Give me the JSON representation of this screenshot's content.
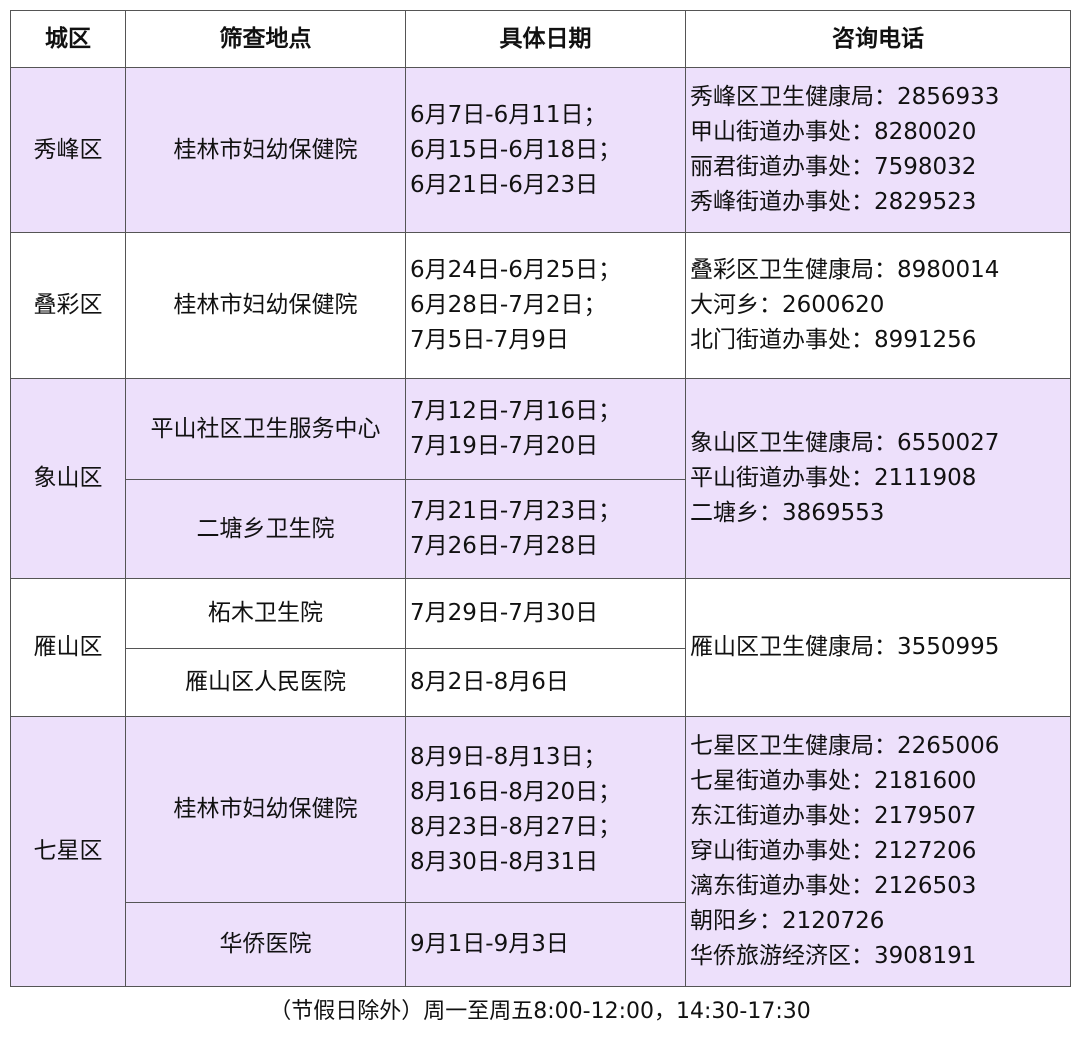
{
  "headers": [
    "城区",
    "筛查地点",
    "具体日期",
    "咨询电话"
  ],
  "colors": {
    "highlight_row": "#ede0fb",
    "border": "#555555"
  },
  "rows": [
    {
      "district": "秀峰区",
      "sites": [
        {
          "name": "桂林市妇幼保健院",
          "dates": [
            "6月7日-6月11日；",
            "6月15日-6月18日；",
            "6月21日-6月23日"
          ]
        }
      ],
      "phones": [
        "秀峰区卫生健康局：2856933",
        "甲山街道办事处：8280020",
        "丽君街道办事处：7598032",
        "秀峰街道办事处：2829523"
      ]
    },
    {
      "district": "叠彩区",
      "sites": [
        {
          "name": "桂林市妇幼保健院",
          "dates": [
            "6月24日-6月25日；",
            "6月28日-7月2日；",
            "7月5日-7月9日"
          ]
        }
      ],
      "phones": [
        "叠彩区卫生健康局：8980014",
        "大河乡：2600620",
        "北门街道办事处：8991256"
      ]
    },
    {
      "district": "象山区",
      "sites": [
        {
          "name": "平山社区卫生服务中心",
          "dates": [
            "7月12日-7月16日；",
            "7月19日-7月20日"
          ]
        },
        {
          "name": "二塘乡卫生院",
          "dates": [
            "7月21日-7月23日；",
            "7月26日-7月28日"
          ]
        }
      ],
      "phones": [
        "象山区卫生健康局：6550027",
        "平山街道办事处：2111908",
        "二塘乡：3869553"
      ]
    },
    {
      "district": "雁山区",
      "sites": [
        {
          "name": "柘木卫生院",
          "dates": [
            "7月29日-7月30日"
          ]
        },
        {
          "name": "雁山区人民医院",
          "dates": [
            "8月2日-8月6日"
          ]
        }
      ],
      "phones": [
        "雁山区卫生健康局：3550995"
      ]
    },
    {
      "district": "七星区",
      "sites": [
        {
          "name": "桂林市妇幼保健院",
          "dates": [
            "8月9日-8月13日；",
            "8月16日-8月20日；",
            "8月23日-8月27日；",
            "8月30日-8月31日"
          ]
        },
        {
          "name": "华侨医院",
          "dates": [
            "9月1日-9月3日"
          ]
        }
      ],
      "phones": [
        "七星区卫生健康局：2265006",
        "七星街道办事处：2181600",
        "东江街道办事处：2179507",
        "穿山街道办事处：2127206",
        "漓东街道办事处：2126503",
        "朝阳乡：2120726",
        "华侨旅游经济区：3908191"
      ]
    }
  ],
  "footer": "（节假日除外）周一至周五8:00-12:00，14:30-17:30"
}
